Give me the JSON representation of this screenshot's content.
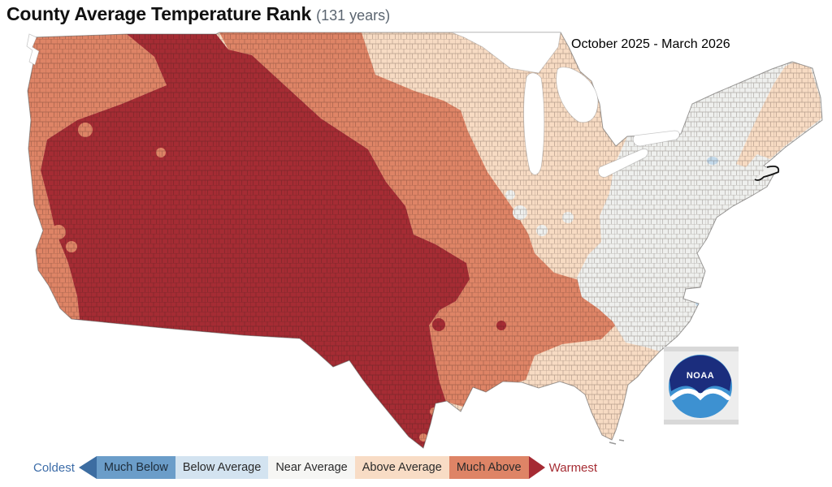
{
  "header": {
    "title": "County Average Temperature Rank",
    "subtitle": "(131 years)",
    "period": "October 2025 - March 2026"
  },
  "legend": {
    "coldest": {
      "label": "Coldest",
      "label_color": "#3c6ca8",
      "arrow_color": "#3d6da1"
    },
    "warmest": {
      "label": "Warmest",
      "label_color": "#a62d34",
      "arrow_color": "#a52a33"
    },
    "categories": [
      {
        "id": "much_below",
        "label": "Much Below",
        "color": "#6b9dc9",
        "text_color": "#1d2c3a"
      },
      {
        "id": "below_average",
        "label": "Below Average",
        "color": "#d3e3f0",
        "text_color": "#2a2a2a"
      },
      {
        "id": "near_average",
        "label": "Near Average",
        "color": "#f6f6f4",
        "text_color": "#2a2a2a"
      },
      {
        "id": "above_average",
        "label": "Above Average",
        "color": "#f8dcc5",
        "text_color": "#2a2a2a"
      },
      {
        "id": "much_above",
        "label": "Much Above",
        "color": "#de8466",
        "text_color": "#2a2a2a"
      }
    ]
  },
  "map": {
    "category_colors": {
      "record_warmest": "#a52c34",
      "much_above": "#de8466",
      "above_average": "#f7dbc3",
      "near_average": "#eeefed",
      "below_average": "#c3d9ea"
    },
    "regions": {
      "base-conus": "above_average",
      "central-plains-band": "much_above",
      "pacific-coast-strip": "much_above",
      "interior-west": "record_warmest",
      "northeast": "near_average",
      "northern-new-england": "above_average",
      "midwest-near-patch-1": "near_average",
      "midwest-near-patch-2": "near_average",
      "midwest-near-patch-3": "near_average",
      "midwest-near-patch-4": "near_average",
      "ozark-record-patch": "record_warmest",
      "louisiana-record-patch": "record_warmest",
      "oregon-coast-patch": "much_above",
      "sf-bay-patch-1": "much_above",
      "sf-bay-patch-2": "much_above",
      "nevada-patch": "much_above",
      "texas-coast-patch-1": "much_above",
      "texas-coast-patch-2": "much_above",
      "ny-lake-patch": "below_average",
      "carolina-coast-patch-1": "below_average",
      "carolina-coast-patch-2": "below_average"
    },
    "county_line_color": "rgba(40,25,20,0.32)",
    "outline_color": "rgba(80,80,80,0.55)",
    "water_color": "#ffffff"
  },
  "logo": {
    "text": "NOAA",
    "navy": "#1b2d7d",
    "sea_blue": "#3d91d1"
  }
}
